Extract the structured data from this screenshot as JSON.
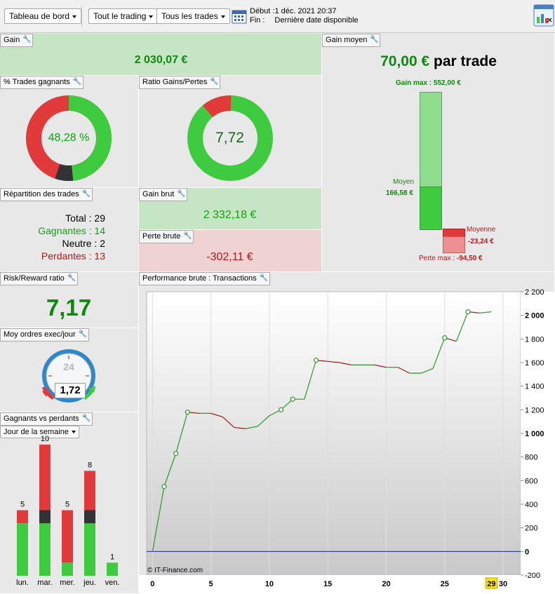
{
  "toolbar": {
    "dashboard": "Tableau de bord",
    "trading": "Tout le trading",
    "trades": "Tous les trades",
    "debut_label": "Début :",
    "debut_value": "1 déc. 2021 20:37",
    "fin_label": "Fin :",
    "fin_value": "Dernière date disponible"
  },
  "gain": {
    "title": "Gain",
    "value": "2 030,07 €"
  },
  "gain_moyen": {
    "title": "Gain moyen",
    "value": "70,00 €",
    "unit": " par trade",
    "gain_max_label": "Gain max :",
    "gain_max_value": "552,00 €",
    "moyen_label": "Moyen",
    "moyen_value": "166,58 €",
    "moyenne_label": "Moyenne",
    "moyenne_value": "-23,24 €",
    "perte_max_label": "Perte max :",
    "perte_max_value": "-94,50 €"
  },
  "trades_gagnants": {
    "title": "% Trades gagnants",
    "value": "48,28 %"
  },
  "ratio": {
    "title": "Ratio Gains/Pertes",
    "value": "7,72"
  },
  "repartition": {
    "title": "Répartition des trades",
    "total_label": "Total :",
    "total": "29",
    "gagnantes_label": "Gagnantes :",
    "gagnantes": "14",
    "neutre_label": "Neutre :",
    "neutre": "2",
    "perdantes_label": "Perdantes :",
    "perdantes": "13"
  },
  "gain_brut": {
    "title": "Gain brut",
    "value": "2 332,18 €"
  },
  "perte_brute": {
    "title": "Perte brute",
    "value": "-302,11 €"
  },
  "risk": {
    "title": "Risk/Reward ratio",
    "value": "7,17"
  },
  "ordres": {
    "title": "Moy ordres exec/jour",
    "clock": "24",
    "value": "1,72"
  },
  "gvp": {
    "title": "Gagnants vs perdants",
    "select": "Jour de la semaine",
    "days": [
      {
        "label": "lun.",
        "total": "5",
        "win": 4,
        "neutral": 0,
        "loss": 1
      },
      {
        "label": "mar.",
        "total": "10",
        "win": 4,
        "neutral": 1,
        "loss": 5
      },
      {
        "label": "mer.",
        "total": "5",
        "win": 1,
        "neutral": 0,
        "loss": 4
      },
      {
        "label": "jeu.",
        "total": "8",
        "win": 4,
        "neutral": 1,
        "loss": 3
      },
      {
        "label": "ven.",
        "total": "1",
        "win": 1,
        "neutral": 0,
        "loss": 0
      }
    ]
  },
  "perf": {
    "title": "Performance brute : Transactions",
    "watermark": "© IT-Finance.com",
    "x_ticks": [
      "0",
      "5",
      "10",
      "15",
      "20",
      "25",
      "30"
    ],
    "highlight_x": "29",
    "y_ticks": [
      "2 200",
      "2 000",
      "1 800",
      "1 600",
      "1 400",
      "1 200",
      "1 000",
      "800",
      "600",
      "400",
      "200",
      "0",
      "-200"
    ]
  },
  "chart_data": {
    "type": "line",
    "title": "Performance brute : Transactions",
    "xlabel": "",
    "ylabel": "",
    "xlim": [
      -0.5,
      31.5
    ],
    "ylim": [
      -200,
      2200
    ],
    "x": [
      0,
      1,
      2,
      3,
      4,
      5,
      6,
      7,
      8,
      9,
      10,
      11,
      12,
      13,
      14,
      15,
      16,
      17,
      18,
      19,
      20,
      21,
      22,
      23,
      24,
      25,
      26,
      27,
      28,
      29
    ],
    "y": [
      0,
      550,
      830,
      1180,
      1170,
      1170,
      1140,
      1050,
      1040,
      1060,
      1150,
      1200,
      1290,
      1290,
      1620,
      1610,
      1600,
      1580,
      1580,
      1580,
      1560,
      1560,
      1510,
      1510,
      1550,
      1810,
      1780,
      2030,
      2020,
      2030
    ],
    "markers_x": [
      1,
      2,
      3,
      11,
      12,
      14,
      25,
      27
    ],
    "colors": {
      "up": "#2a9a2a",
      "down": "#a01818",
      "zero": "#2020a0"
    }
  },
  "colors": {
    "win": "#3fcb3f",
    "loss": "#e03a3a",
    "neutral": "#333333",
    "gain_bg": "#c6e5c4",
    "loss_bg": "#efd3d3"
  }
}
